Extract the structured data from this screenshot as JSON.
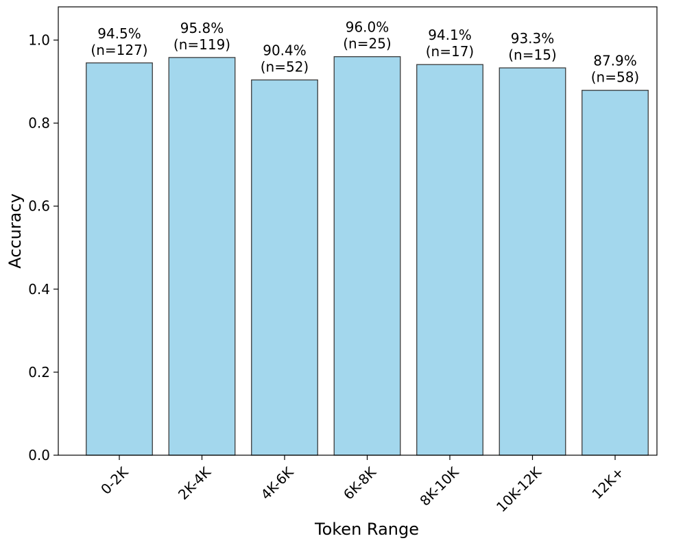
{
  "chart_data": {
    "type": "bar",
    "title": "",
    "xlabel": "Token Range",
    "ylabel": "Accuracy",
    "ylim": [
      0,
      1.08
    ],
    "yticks": [
      0.0,
      0.2,
      0.4,
      0.6,
      0.8,
      1.0
    ],
    "ytick_labels": [
      "0.0",
      "0.2",
      "0.4",
      "0.6",
      "0.8",
      "1.0"
    ],
    "categories": [
      "0-2K",
      "2K-4K",
      "4K-6K",
      "6K-8K",
      "8K-10K",
      "10K-12K",
      "12K+"
    ],
    "values": [
      0.945,
      0.958,
      0.904,
      0.96,
      0.941,
      0.933,
      0.879
    ],
    "data_labels": [
      [
        "94.5%",
        "(n=127)"
      ],
      [
        "95.8%",
        "(n=119)"
      ],
      [
        "90.4%",
        "(n=52)"
      ],
      [
        "96.0%",
        "(n=25)"
      ],
      [
        "94.1%",
        "(n=17)"
      ],
      [
        "93.3%",
        "(n=15)"
      ],
      [
        "87.9%",
        "(n=58)"
      ]
    ],
    "grid": false,
    "bar_color": "#a3d7ed",
    "bar_edge_color": "#3a3a3a"
  }
}
